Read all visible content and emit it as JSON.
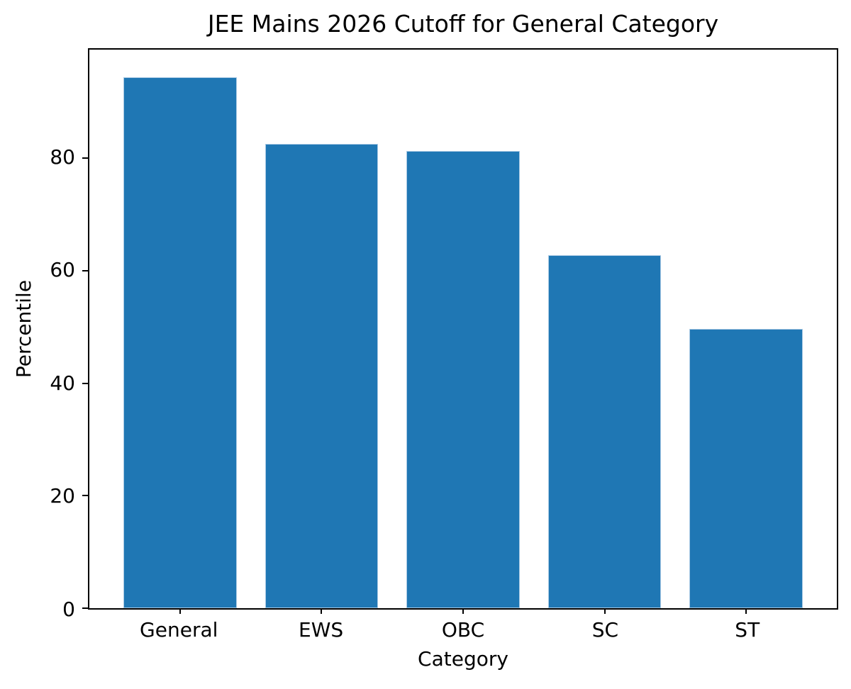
{
  "chart_data": {
    "type": "bar",
    "title": "JEE Mains 2026 Cutoff for General Category",
    "xlabel": "Category",
    "ylabel": "Percentile",
    "categories": [
      "General",
      "EWS",
      "OBC",
      "SC",
      "ST"
    ],
    "values": [
      94.4,
      82.6,
      81.3,
      62.7,
      49.7
    ],
    "yticks": [
      0,
      20,
      40,
      60,
      80
    ],
    "ylim": [
      0,
      99.3
    ],
    "bar_color": "#1f77b4",
    "bar_edge_color": "#a9c9e4",
    "axis_color": "#000000",
    "background_color": "#ffffff",
    "grid": false,
    "legend_position": "none"
  }
}
